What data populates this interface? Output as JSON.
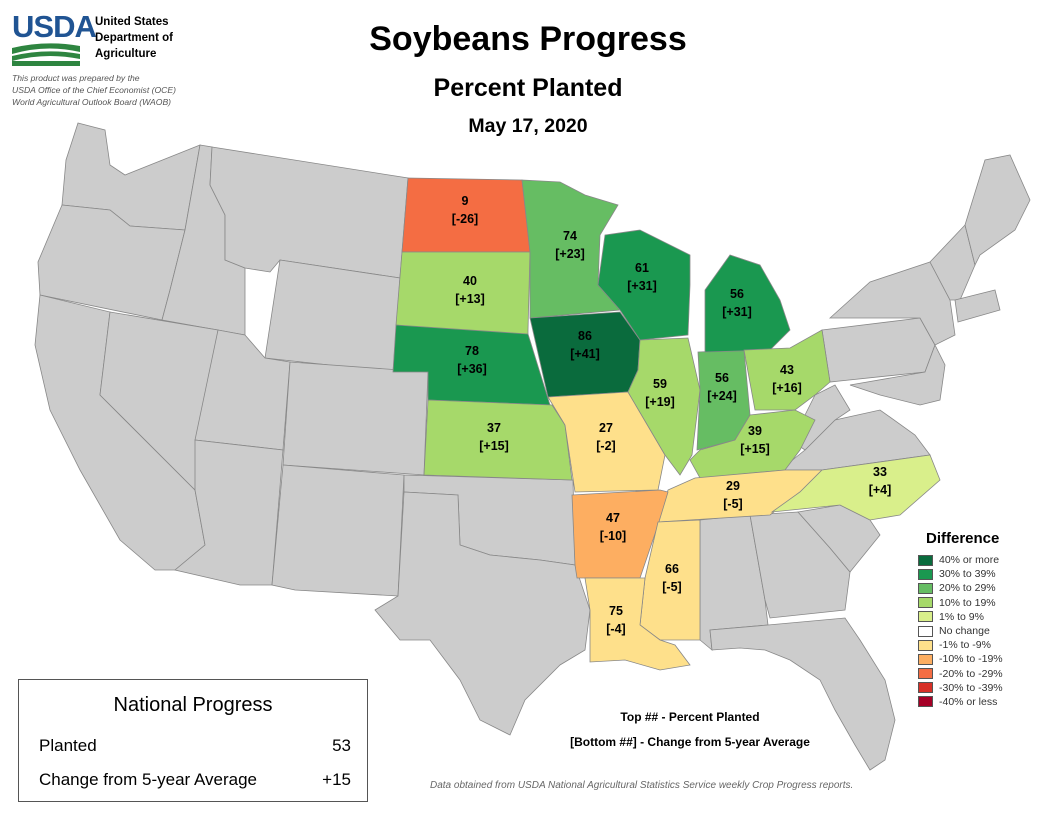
{
  "agency": {
    "logo_text": "USDA",
    "name_line1": "United States",
    "name_line2": "Department of",
    "name_line3": "Agriculture",
    "credit_line1": "This product was prepared by the",
    "credit_line2": "USDA Office of the Chief Economist (OCE)",
    "credit_line3": "World Agricultural Outlook Board (WAOB)"
  },
  "title": "Soybeans Progress",
  "subtitle": "Percent Planted",
  "date": "May 17, 2020",
  "colors": {
    "no_data_state": "#cccccc",
    "state_border": "#888888",
    "logo_blue": "#205493",
    "logo_green": "#2e8540"
  },
  "legend": {
    "title": "Difference",
    "items": [
      {
        "label": "40% or more",
        "color": "#0a6b3d"
      },
      {
        "label": "30% to 39%",
        "color": "#1a9850"
      },
      {
        "label": "20% to 29%",
        "color": "#66bd63"
      },
      {
        "label": "10% to 19%",
        "color": "#a6d96a"
      },
      {
        "label": "1% to 9%",
        "color": "#d9ef8b"
      },
      {
        "label": "No change",
        "color": "#ffffff"
      },
      {
        "label": "-1% to -9%",
        "color": "#fee08b"
      },
      {
        "label": "-10% to -19%",
        "color": "#fdae61"
      },
      {
        "label": "-20% to -29%",
        "color": "#f46d43"
      },
      {
        "label": "-30% to -39%",
        "color": "#d73027"
      },
      {
        "label": "-40% or less",
        "color": "#a50026"
      }
    ]
  },
  "states": [
    {
      "id": "ND",
      "planted": "9",
      "change": "[-26]",
      "color": "#f46d43"
    },
    {
      "id": "MN",
      "planted": "74",
      "change": "[+23]",
      "color": "#66bd63"
    },
    {
      "id": "SD",
      "planted": "40",
      "change": "[+13]",
      "color": "#a6d96a"
    },
    {
      "id": "WI",
      "planted": "61",
      "change": "[+31]",
      "color": "#1a9850"
    },
    {
      "id": "MI",
      "planted": "56",
      "change": "[+31]",
      "color": "#1a9850"
    },
    {
      "id": "NE",
      "planted": "78",
      "change": "[+36]",
      "color": "#1a9850"
    },
    {
      "id": "IA",
      "planted": "86",
      "change": "[+41]",
      "color": "#0a6b3d"
    },
    {
      "id": "IL",
      "planted": "59",
      "change": "[+19]",
      "color": "#a6d96a"
    },
    {
      "id": "IN",
      "planted": "56",
      "change": "[+24]",
      "color": "#66bd63"
    },
    {
      "id": "OH",
      "planted": "43",
      "change": "[+16]",
      "color": "#a6d96a"
    },
    {
      "id": "KS",
      "planted": "37",
      "change": "[+15]",
      "color": "#a6d96a"
    },
    {
      "id": "MO",
      "planted": "27",
      "change": "[-2]",
      "color": "#fee08b"
    },
    {
      "id": "KY",
      "planted": "39",
      "change": "[+15]",
      "color": "#a6d96a"
    },
    {
      "id": "NC",
      "planted": "33",
      "change": "[+4]",
      "color": "#d9ef8b"
    },
    {
      "id": "TN",
      "planted": "29",
      "change": "[-5]",
      "color": "#fee08b"
    },
    {
      "id": "AR",
      "planted": "47",
      "change": "[-10]",
      "color": "#fdae61"
    },
    {
      "id": "MS",
      "planted": "66",
      "change": "[-5]",
      "color": "#fee08b"
    },
    {
      "id": "LA",
      "planted": "75",
      "change": "[-4]",
      "color": "#fee08b"
    }
  ],
  "key": {
    "top_line": "Top ## - Percent Planted",
    "bottom_line": "[Bottom ##] - Change from 5-year Average"
  },
  "national": {
    "title": "National Progress",
    "planted_label": "Planted",
    "planted_value": "53",
    "change_label": "Change from 5-year Average",
    "change_value": "+15"
  },
  "source": "Data obtained from USDA National Agricultural Statistics Service weekly Crop Progress reports."
}
